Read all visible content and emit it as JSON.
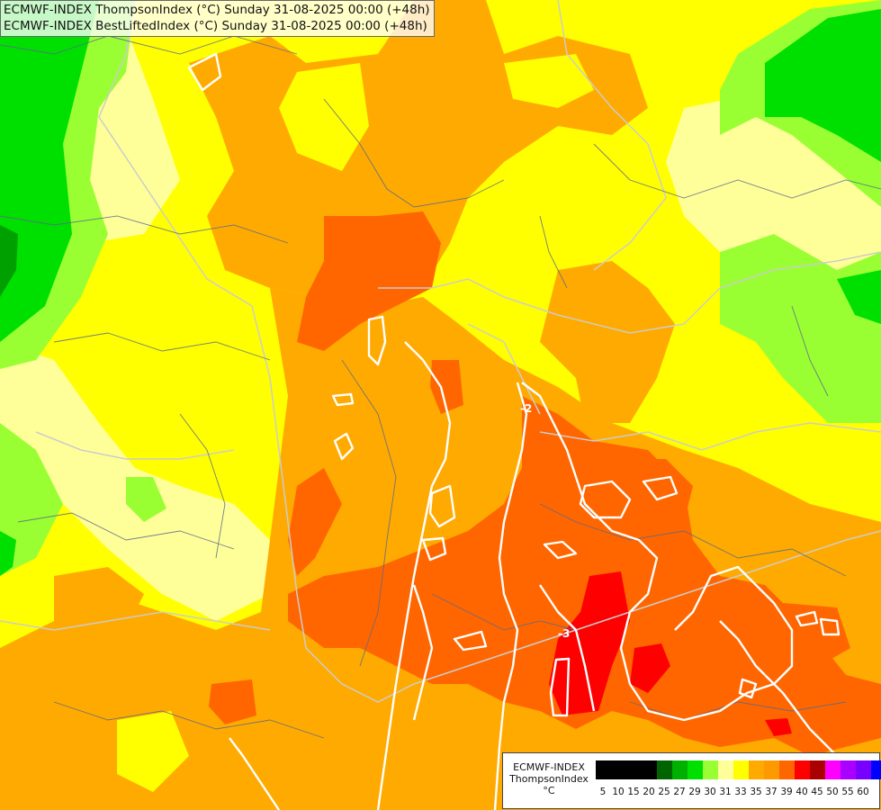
{
  "header": {
    "line1": "ECMWF-INDEX ThompsonIndex (°C) Sunday 31-08-2025 00:00 (+48h)",
    "line2": "ECMWF-INDEX BestLiftedIndex (°C) Sunday 31-08-2025 00:00 (+48h)"
  },
  "legend": {
    "line1": "ECMWF-INDEX",
    "line2": "ThompsonIndex",
    "line3": "°C",
    "ticks": [
      "5",
      "10",
      "15",
      "20",
      "25",
      "27",
      "29",
      "30",
      "31",
      "33",
      "35",
      "37",
      "39",
      "40",
      "45",
      "50",
      "55",
      "60"
    ],
    "colors": [
      "#000000",
      "#000000",
      "#000000",
      "#000000",
      "#006400",
      "#00b000",
      "#00e000",
      "#99ff33",
      "#ffff99",
      "#ffff00",
      "#ffaa00",
      "#ff9900",
      "#ff6600",
      "#ff0000",
      "#aa0000",
      "#ff00ff",
      "#aa00ff",
      "#7700ff",
      "#0000ff"
    ]
  },
  "contour_labels": [
    "-2",
    "-3"
  ],
  "colors": {
    "dark_green": "#00a000",
    "green": "#00e000",
    "light_green": "#99ff33",
    "pale_yellow": "#ffff99",
    "yellow": "#ffff00",
    "light_orange": "#ffaa00",
    "orange": "#ff9900",
    "dark_orange": "#ff6600",
    "red": "#ff0000"
  }
}
